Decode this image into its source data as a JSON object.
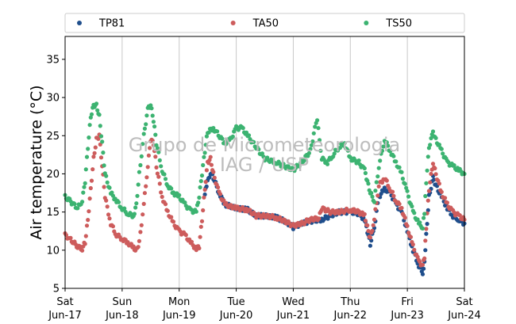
{
  "chart_data": {
    "type": "scatter",
    "ylabel": "Air temperature (°C)",
    "xlabel": "",
    "ylim": [
      5,
      38
    ],
    "yticks": [
      5,
      10,
      15,
      20,
      25,
      30,
      35
    ],
    "xlim": [
      0,
      7
    ],
    "xticks": [
      {
        "x": 0,
        "line1": "Sat",
        "line2": "Jun-17"
      },
      {
        "x": 1,
        "line1": "Sun",
        "line2": "Jun-18"
      },
      {
        "x": 2,
        "line1": "Mon",
        "line2": "Jun-19"
      },
      {
        "x": 3,
        "line1": "Tue",
        "line2": "Jun-20"
      },
      {
        "x": 4,
        "line1": "Wed",
        "line2": "Jun-21"
      },
      {
        "x": 5,
        "line1": "Thu",
        "line2": "Jun-22"
      },
      {
        "x": 6,
        "line1": "Fri",
        "line2": "Jun-23"
      },
      {
        "x": 7,
        "line1": "Sat",
        "line2": "Jun-24"
      }
    ],
    "grid": "vertical",
    "legend_position": "top",
    "watermark": [
      "Grupo de Micrometeorologia",
      "IAG / USP"
    ],
    "series": [
      {
        "name": "TP81",
        "color": "#1f4e8c",
        "x": [
          2.45,
          2.48,
          2.55,
          2.6,
          2.7,
          2.8,
          3.0,
          3.2,
          3.35,
          3.5,
          3.7,
          3.85,
          4.0,
          4.15,
          4.3,
          4.5,
          4.65,
          4.8,
          5.0,
          5.15,
          5.25,
          5.3,
          5.35,
          5.42,
          5.5,
          5.6,
          5.7,
          5.8,
          5.9,
          6.0,
          6.1,
          6.2,
          6.27,
          6.3,
          6.33,
          6.38,
          6.45,
          6.5,
          6.6,
          6.7,
          6.8,
          6.9,
          7.0
        ],
        "y": [
          17.3,
          18.5,
          20.2,
          19.5,
          17.5,
          16.0,
          15.5,
          15.3,
          14.5,
          14.5,
          14.3,
          13.8,
          13.0,
          13.5,
          13.8,
          14.0,
          14.5,
          15.0,
          15.0,
          14.8,
          14.0,
          12.5,
          10.8,
          13.0,
          17.0,
          18.0,
          17.5,
          16.0,
          15.0,
          12.5,
          10.0,
          8.0,
          7.0,
          8.5,
          12.0,
          17.0,
          19.5,
          18.5,
          17.0,
          15.5,
          14.5,
          14.0,
          13.5
        ]
      },
      {
        "name": "TA50",
        "color": "#cd5c5c",
        "x": [
          0.0,
          0.08,
          0.15,
          0.22,
          0.3,
          0.35,
          0.4,
          0.45,
          0.5,
          0.55,
          0.6,
          0.65,
          0.7,
          0.8,
          0.9,
          1.0,
          1.1,
          1.2,
          1.25,
          1.3,
          1.38,
          1.45,
          1.5,
          1.55,
          1.6,
          1.7,
          1.8,
          1.9,
          2.0,
          2.1,
          2.2,
          2.3,
          2.35,
          2.4,
          2.45,
          2.5,
          2.55,
          2.6,
          2.7,
          2.8,
          3.0,
          3.2,
          3.35,
          3.5,
          3.7,
          3.85,
          4.0,
          4.15,
          4.3,
          4.45,
          4.5,
          4.65,
          4.8,
          5.0,
          5.15,
          5.25,
          5.3,
          5.35,
          5.42,
          5.5,
          5.6,
          5.7,
          5.8,
          5.9,
          6.0,
          6.1,
          6.2,
          6.27,
          6.3,
          6.33,
          6.38,
          6.45,
          6.5,
          6.6,
          6.7,
          6.8,
          6.9,
          7.0
        ],
        "y": [
          12.0,
          11.5,
          11.0,
          10.5,
          10.2,
          11.0,
          14.0,
          18.0,
          22.0,
          24.5,
          25.0,
          21.0,
          17.0,
          13.5,
          12.0,
          11.5,
          11.0,
          10.3,
          10.0,
          11.0,
          16.0,
          21.0,
          24.5,
          24.0,
          21.0,
          17.0,
          15.0,
          13.5,
          12.5,
          12.0,
          11.0,
          10.2,
          10.5,
          14.0,
          18.0,
          21.5,
          22.0,
          20.0,
          17.5,
          16.0,
          15.5,
          15.3,
          14.5,
          14.5,
          14.3,
          13.8,
          13.2,
          13.5,
          14.0,
          14.2,
          15.5,
          15.0,
          15.0,
          15.3,
          15.0,
          14.5,
          13.0,
          11.5,
          14.0,
          18.5,
          19.5,
          18.0,
          16.5,
          15.5,
          13.0,
          10.5,
          8.5,
          8.0,
          9.0,
          13.0,
          18.0,
          21.5,
          20.0,
          17.5,
          16.0,
          15.0,
          14.5,
          14.0
        ]
      },
      {
        "name": "TS50",
        "color": "#3cb371",
        "x": [
          0.0,
          0.08,
          0.15,
          0.22,
          0.3,
          0.35,
          0.4,
          0.45,
          0.5,
          0.55,
          0.6,
          0.65,
          0.7,
          0.8,
          0.9,
          1.0,
          1.1,
          1.2,
          1.25,
          1.3,
          1.38,
          1.45,
          1.5,
          1.55,
          1.6,
          1.7,
          1.8,
          1.9,
          2.0,
          2.1,
          2.2,
          2.3,
          2.35,
          2.4,
          2.45,
          2.5,
          2.6,
          2.8,
          2.9,
          3.0,
          3.1,
          3.2,
          3.35,
          3.5,
          3.7,
          3.85,
          4.0,
          4.15,
          4.3,
          4.38,
          4.42,
          4.5,
          4.6,
          4.7,
          4.8,
          4.9,
          5.0,
          5.15,
          5.25,
          5.3,
          5.35,
          5.42,
          5.5,
          5.6,
          5.7,
          5.8,
          5.9,
          6.0,
          6.1,
          6.2,
          6.27,
          6.3,
          6.33,
          6.38,
          6.45,
          6.5,
          6.6,
          6.7,
          6.8,
          6.9,
          7.0
        ],
        "y": [
          17.0,
          16.5,
          16.0,
          15.5,
          16.5,
          19.0,
          23.5,
          27.5,
          29.0,
          29.0,
          27.5,
          24.0,
          20.0,
          17.5,
          16.5,
          15.5,
          14.8,
          14.5,
          16.0,
          20.0,
          25.0,
          28.5,
          29.0,
          27.0,
          24.0,
          20.5,
          18.5,
          17.5,
          17.0,
          16.0,
          15.2,
          15.0,
          17.0,
          20.0,
          23.0,
          25.5,
          26.0,
          24.0,
          24.5,
          26.0,
          26.0,
          25.0,
          23.5,
          22.0,
          21.5,
          21.0,
          20.5,
          21.5,
          23.0,
          26.0,
          27.0,
          22.0,
          21.5,
          22.5,
          23.5,
          24.0,
          22.0,
          21.5,
          20.5,
          19.0,
          17.5,
          16.5,
          21.0,
          24.5,
          23.0,
          21.5,
          20.0,
          17.5,
          15.0,
          13.5,
          13.0,
          15.0,
          19.0,
          23.5,
          25.5,
          24.5,
          23.0,
          21.5,
          21.0,
          20.5,
          20.0
        ]
      }
    ]
  }
}
